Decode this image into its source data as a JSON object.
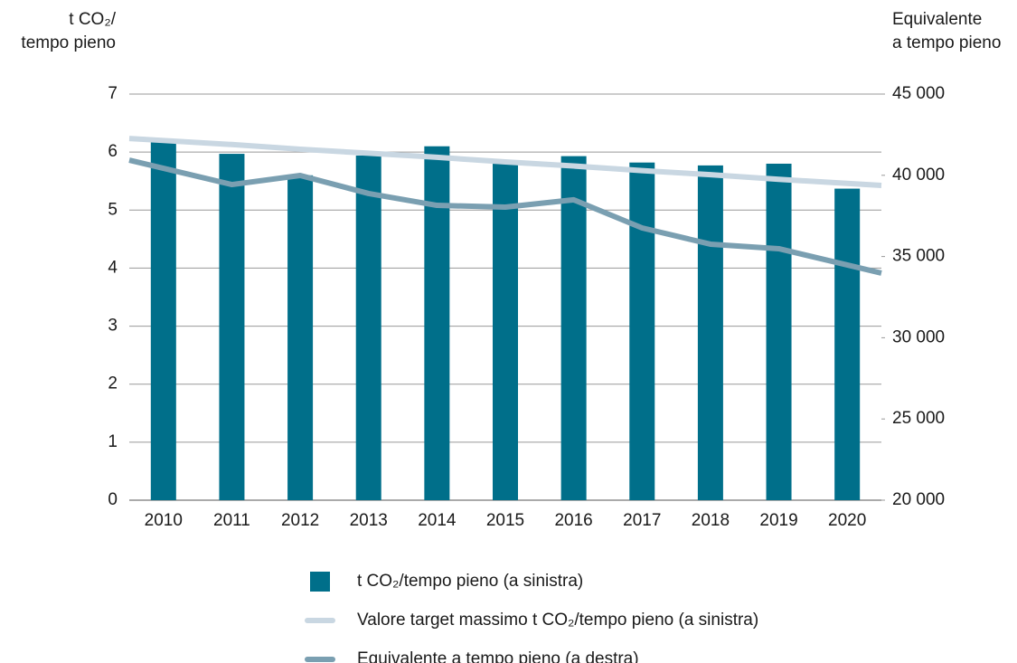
{
  "chart_data": {
    "type": "bar-line",
    "y_label": [
      "t CO₂/",
      "tempo pieno"
    ],
    "y2_label": [
      "Equivalente",
      "a tempo pieno"
    ],
    "categories": [
      "2010",
      "2011",
      "2012",
      "2013",
      "2014",
      "2015",
      "2016",
      "2017",
      "2018",
      "2019",
      "2020"
    ],
    "ylim": [
      0,
      7
    ],
    "yticks": [
      0,
      1,
      2,
      3,
      4,
      5,
      6,
      7
    ],
    "y2lim": [
      20000,
      45000
    ],
    "y2ticks": [
      {
        "value": 20000,
        "label": "20 000"
      },
      {
        "value": 25000,
        "label": "25 000"
      },
      {
        "value": 30000,
        "label": "30 000"
      },
      {
        "value": 35000,
        "label": "35 000"
      },
      {
        "value": 40000,
        "label": "40 000"
      },
      {
        "value": 45000,
        "label": "45 000"
      }
    ],
    "grid": true,
    "series": [
      {
        "name": "t CO₂/tempo pieno (a sinistra)",
        "kind": "bar",
        "color": "#006f8a",
        "values": [
          6.2,
          5.97,
          5.6,
          5.94,
          6.1,
          5.8,
          5.93,
          5.82,
          5.77,
          5.8,
          5.37
        ]
      },
      {
        "name": "Valore target massimo t CO₂/tempo pieno (a sinistra)",
        "kind": "line",
        "color": "#c9d7e2",
        "values": [
          6.2,
          6.13,
          6.05,
          5.98,
          5.91,
          5.83,
          5.76,
          5.68,
          5.61,
          5.53,
          5.46
        ]
      },
      {
        "name": "Equivalente a tempo pieno (a destra)",
        "kind": "line",
        "axis": "y2",
        "color": "#7a9fb1",
        "values": [
          40430,
          39430,
          39990,
          38880,
          38150,
          38040,
          38490,
          36760,
          35760,
          35480,
          34480
        ]
      }
    ]
  }
}
